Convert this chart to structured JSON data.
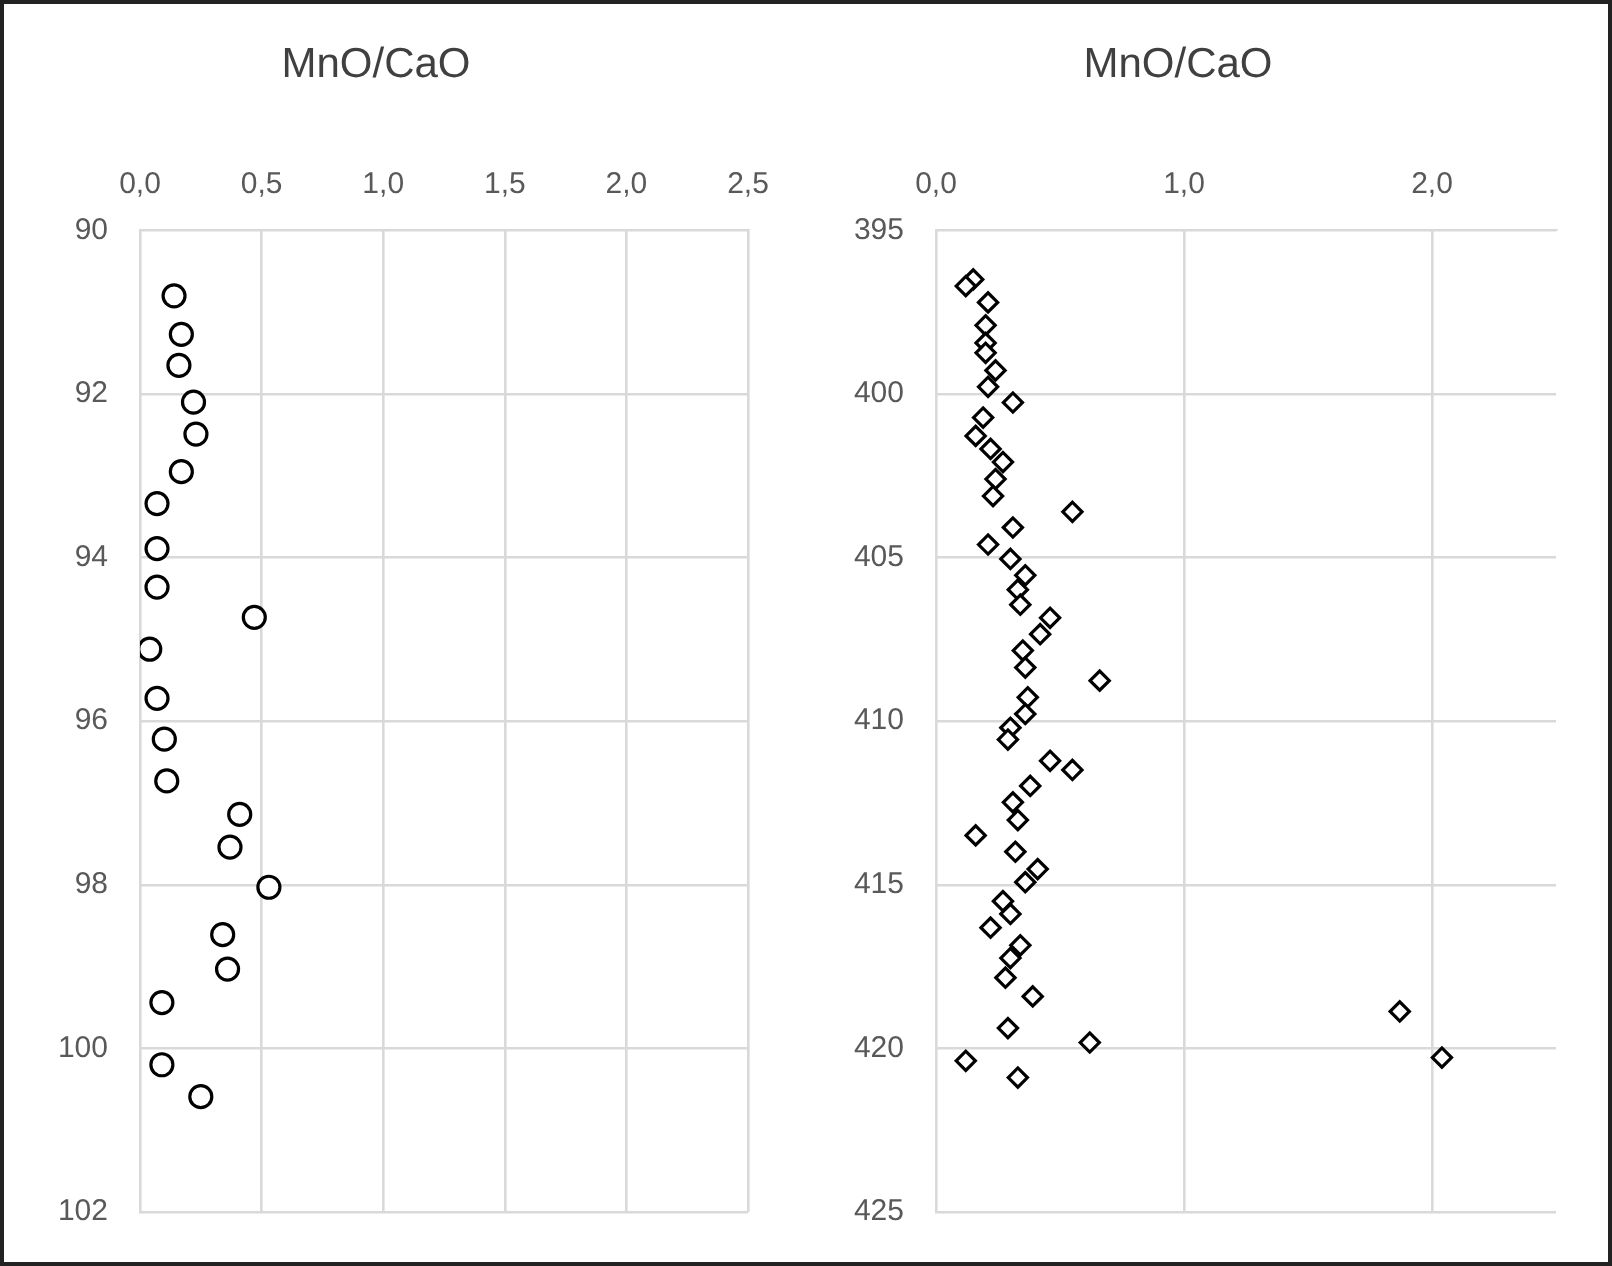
{
  "chart_data": [
    {
      "type": "scatter",
      "title": "MnO/CaO",
      "marker": "circle",
      "grid": true,
      "xlim": [
        0,
        2.5
      ],
      "xticks": [
        {
          "value": 0,
          "label": "0,0"
        },
        {
          "value": 0.5,
          "label": "0,5"
        },
        {
          "value": 1,
          "label": "1,0"
        },
        {
          "value": 1.5,
          "label": "1,5"
        },
        {
          "value": 2,
          "label": "2,0"
        },
        {
          "value": 2.5,
          "label": "2,5"
        }
      ],
      "ylim": [
        102,
        90
      ],
      "yticks": [
        90,
        92,
        94,
        96,
        98,
        100,
        102
      ],
      "series": [
        {
          "color": "#000000",
          "x": [
            0.14,
            0.17,
            0.16,
            0.22,
            0.23,
            0.17,
            0.07,
            0.07,
            0.07,
            0.47,
            0.04,
            0.07,
            0.1,
            0.11,
            0.41,
            0.37,
            0.53,
            0.34,
            0.36,
            0.09,
            0.09,
            0.25
          ],
          "values": [
            90.8,
            91.27,
            91.65,
            92.1,
            92.49,
            92.95,
            93.34,
            93.89,
            94.36,
            94.73,
            95.12,
            95.72,
            96.22,
            96.73,
            97.14,
            97.54,
            98.03,
            98.61,
            99.03,
            99.44,
            100.2,
            100.59
          ]
        }
      ]
    },
    {
      "type": "scatter",
      "title": "MnO/CaO",
      "marker": "diamond",
      "grid": true,
      "xlim": [
        0,
        2.5
      ],
      "xticks": [
        {
          "value": 0,
          "label": "0,0"
        },
        {
          "value": 1,
          "label": "1,0"
        },
        {
          "value": 2,
          "label": "2,0"
        }
      ],
      "ylim": [
        425,
        395
      ],
      "yticks": [
        395,
        400,
        405,
        410,
        415,
        420,
        425
      ],
      "series": [
        {
          "color": "#000000",
          "x": [
            0.15,
            0.12,
            0.21,
            0.2,
            0.2,
            0.2,
            0.24,
            0.21,
            0.31,
            0.19,
            0.16,
            0.22,
            0.27,
            0.24,
            0.23,
            0.55,
            0.31,
            0.21,
            0.3,
            0.36,
            0.33,
            0.34,
            0.46,
            0.42,
            0.35,
            0.36,
            0.66,
            0.37,
            0.36,
            0.3,
            0.29,
            0.46,
            0.55,
            0.38,
            0.31,
            0.33,
            0.16,
            0.32,
            0.41,
            0.36,
            0.27,
            0.3,
            0.22,
            0.34,
            0.3,
            0.28,
            0.39,
            1.87,
            0.29,
            0.62,
            2.04,
            0.12,
            0.33
          ],
          "values": [
            396.5,
            396.7,
            397.2,
            397.9,
            398.44,
            398.74,
            399.28,
            399.78,
            400.26,
            400.72,
            401.28,
            401.68,
            402.08,
            402.6,
            403.12,
            403.6,
            404.08,
            404.6,
            405.04,
            405.54,
            405.98,
            406.44,
            406.84,
            407.34,
            407.84,
            408.36,
            408.76,
            409.27,
            409.78,
            410.2,
            410.56,
            411.21,
            411.49,
            411.98,
            412.48,
            413.02,
            413.49,
            413.99,
            414.52,
            414.92,
            415.5,
            415.89,
            416.31,
            416.85,
            417.24,
            417.84,
            418.41,
            418.87,
            419.38,
            419.82,
            420.28,
            420.38,
            420.89
          ]
        }
      ]
    }
  ]
}
